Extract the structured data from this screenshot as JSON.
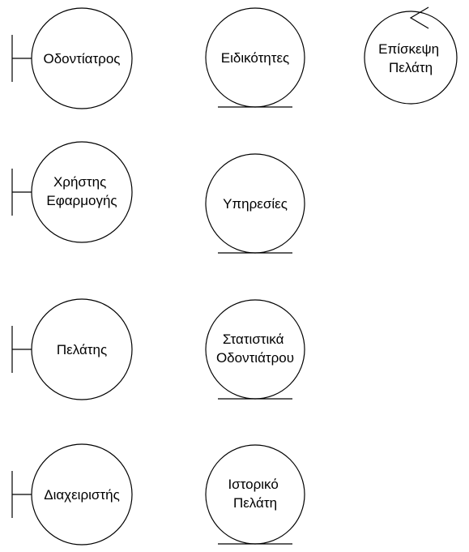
{
  "diagram": {
    "boundaries": [
      {
        "id": "dentist",
        "lines": [
          "Οδοντίατρος"
        ]
      },
      {
        "id": "app-user",
        "lines": [
          "Χρήστης",
          "Εφαρμογής"
        ]
      },
      {
        "id": "customer",
        "lines": [
          "Πελάτης"
        ]
      },
      {
        "id": "administrator",
        "lines": [
          "Διαχειριστής"
        ]
      }
    ],
    "entities": [
      {
        "id": "specialties",
        "lines": [
          "Ειδικότητες"
        ]
      },
      {
        "id": "services",
        "lines": [
          "Υπηρεσίες"
        ]
      },
      {
        "id": "dentist-statistics",
        "lines": [
          "Στατιστικά",
          "Οδοντιάτρου"
        ]
      },
      {
        "id": "customer-history",
        "lines": [
          "Ιστορικό",
          "Πελάτη"
        ]
      }
    ],
    "controls": [
      {
        "id": "customer-visit",
        "lines": [
          "Επίσκεψη",
          "Πελάτη"
        ]
      }
    ]
  }
}
